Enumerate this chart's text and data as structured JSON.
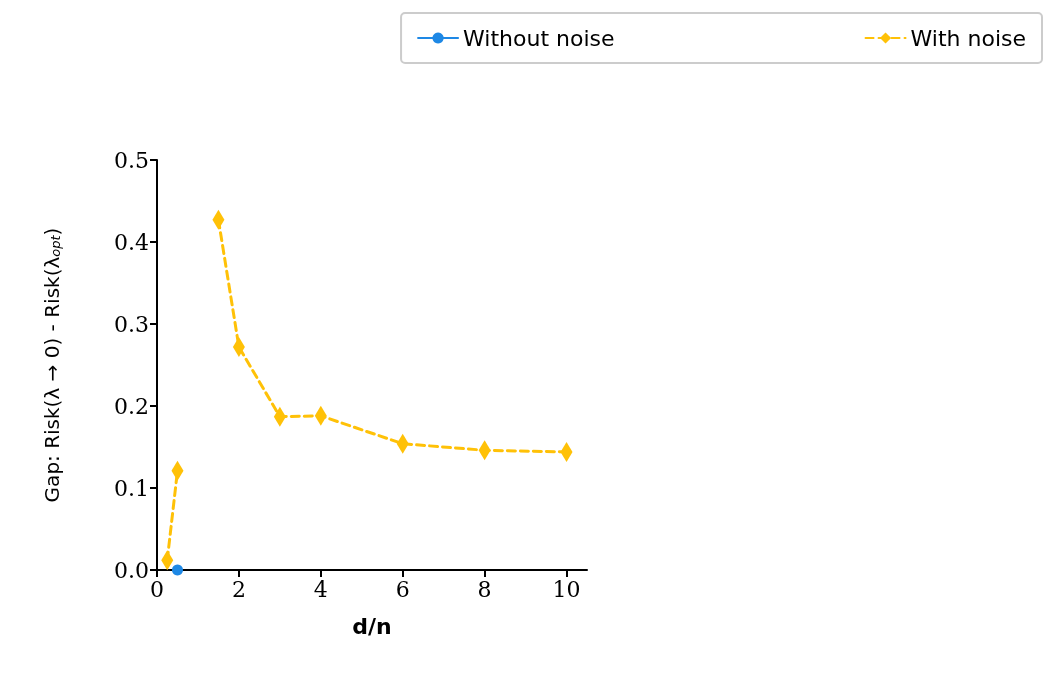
{
  "chart_data": {
    "type": "line",
    "xlabel": "d/n",
    "ylabel": "Gap: Risk(λ → 0) - Risk(λ$_{opt}$)",
    "xlim": [
      0,
      10.5
    ],
    "xticks": [
      0,
      2,
      4,
      6,
      8,
      10
    ],
    "ylim": [
      0,
      0.5
    ],
    "yticks": [
      {
        "value": 0,
        "label": "0.0"
      },
      0.1,
      0.2,
      0.3,
      0.4,
      0.5
    ],
    "grid": false,
    "legend": "top right",
    "series": [
      {
        "name": "Without noise",
        "color": "#1e88e5",
        "marker": "circle",
        "line_style": "solid",
        "x": [
          0.5
        ],
        "values": [
          0
        ]
      },
      {
        "name": "With noise",
        "color": "#ffc107",
        "marker": "diamond",
        "line_style": "dashed",
        "x": [
          0.25,
          0.5,
          1,
          1.5,
          2,
          3,
          4,
          6,
          8,
          10
        ],
        "values": [
          0.012,
          0.121,
          null,
          0.427,
          0.272,
          0.187,
          0.188,
          0.154,
          0.146,
          0.144
        ]
      }
    ]
  }
}
